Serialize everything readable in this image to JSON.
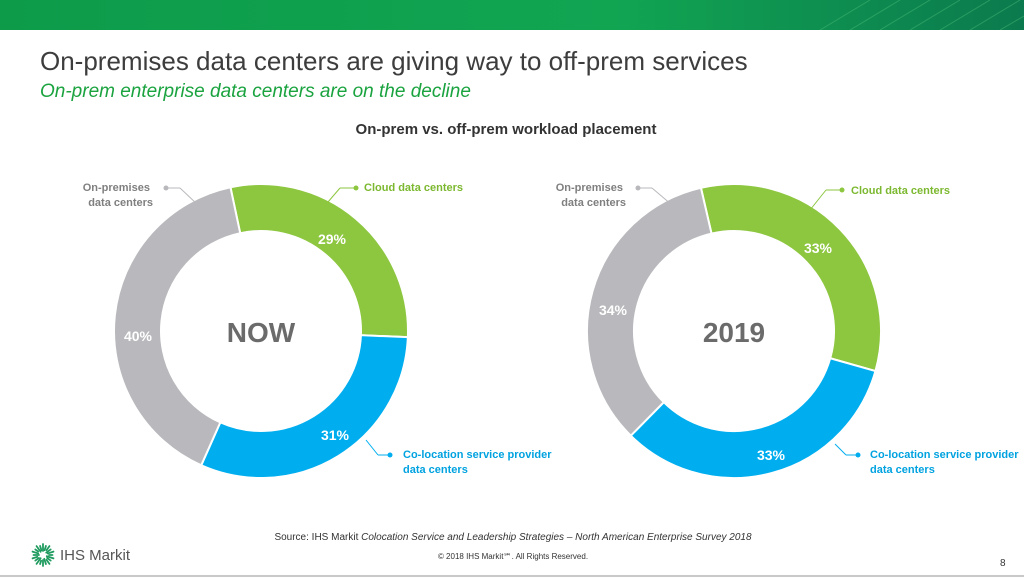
{
  "slide": {
    "title": "On-premises data centers are giving way to off-prem services",
    "subtitle": "On-prem enterprise data centers are on the decline",
    "source_prefix": "Source: IHS Markit ",
    "source_italic": "Colocation Service and Leadership Strategies – North American Enterprise Survey 2018",
    "copyright": "© 2018 IHS Markit℠. All Rights Reserved.",
    "page_number": "8",
    "logo_text": "IHS Markit"
  },
  "chart_data": [
    {
      "type": "donut",
      "title": "On-prem vs. off-prem workload placement",
      "center_label": "NOW",
      "series": [
        {
          "name": "Cloud data centers",
          "value": 29,
          "label": "29%",
          "color": "#8dc63f"
        },
        {
          "name": "Co-location service provider data centers",
          "value": 31,
          "label": "31%",
          "color": "#00aeef"
        },
        {
          "name": "On-premises data centers",
          "value": 40,
          "label": "40%",
          "color": "#b9b9bd"
        }
      ]
    },
    {
      "type": "donut",
      "title": "On-prem vs. off-prem workload placement",
      "center_label": "2019",
      "series": [
        {
          "name": "Cloud data centers",
          "value": 33,
          "label": "33%",
          "color": "#8dc63f"
        },
        {
          "name": "Co-location service provider data centers",
          "value": 33,
          "label": "33%",
          "color": "#00aeef"
        },
        {
          "name": "On-premises data centers",
          "value": 34,
          "label": "34%",
          "color": "#b9b9bd"
        }
      ]
    }
  ]
}
